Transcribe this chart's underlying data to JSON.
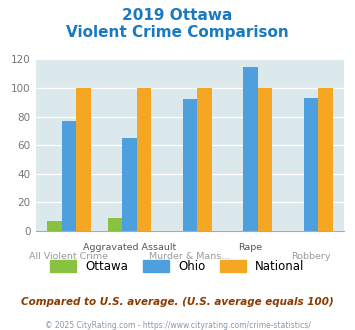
{
  "title_line1": "2019 Ottawa",
  "title_line2": "Violent Crime Comparison",
  "categories": [
    "All Violent Crime",
    "Aggravated Assault",
    "Murder & Mans...",
    "Rape",
    "Robbery"
  ],
  "ottawa": [
    7,
    9,
    0,
    0,
    0
  ],
  "ohio": [
    77,
    65,
    92,
    115,
    93
  ],
  "national": [
    100,
    100,
    100,
    100,
    100
  ],
  "ottawa_color": "#88c240",
  "ohio_color": "#4d9fde",
  "national_color": "#f5a623",
  "bg_color": "#dce9ec",
  "ylim": [
    0,
    120
  ],
  "yticks": [
    0,
    20,
    40,
    60,
    80,
    100,
    120
  ],
  "title_color": "#1a7abf",
  "footer_text": "Compared to U.S. average. (U.S. average equals 100)",
  "copyright_text": "© 2025 CityRating.com - https://www.cityrating.com/crime-statistics/",
  "legend_labels": [
    "Ottawa",
    "Ohio",
    "National"
  ],
  "footer_color": "#8b3a00",
  "copyright_color": "#8899aa"
}
